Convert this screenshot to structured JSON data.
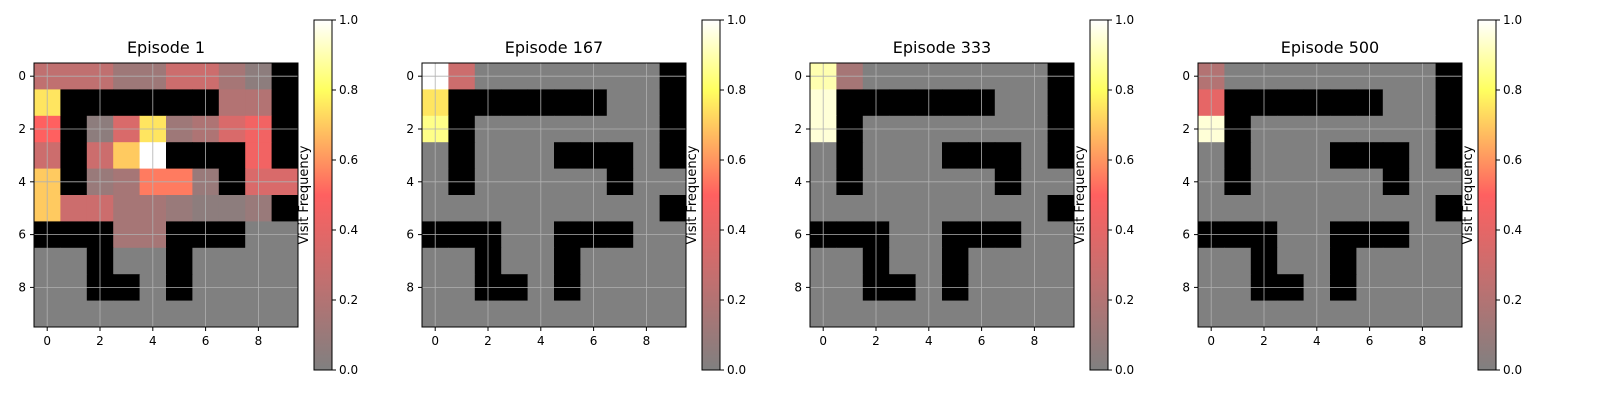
{
  "figure": {
    "colormap": [
      "#808080",
      "#ff6060",
      "#ffff60",
      "#ffffff"
    ],
    "wall_color": "#000000",
    "grid": true
  },
  "chart_data": [
    {
      "type": "heatmap",
      "title": "Episode 1",
      "xticks": [
        "0",
        "2",
        "4",
        "6",
        "8"
      ],
      "yticks": [
        "0",
        "2",
        "4",
        "6",
        "8"
      ],
      "colorbar_label": "Visit Frequency",
      "colorbar_ticks": [
        "0.0",
        "0.2",
        "0.4",
        "0.6",
        "0.8",
        "1.0"
      ],
      "clim": [
        0,
        1
      ],
      "cells": [
        [
          0.25,
          0.25,
          0.25,
          0.12,
          0.12,
          0.3,
          0.3,
          0.15,
          0.05,
          -1
        ],
        [
          0.75,
          -1,
          -1,
          -1,
          -1,
          -1,
          -1,
          0.2,
          0.2,
          -1
        ],
        [
          0.5,
          -1,
          0.05,
          0.35,
          0.75,
          0.12,
          0.18,
          0.35,
          0.45,
          -1
        ],
        [
          0.3,
          -1,
          0.3,
          0.7,
          1.0,
          -1,
          -1,
          -1,
          0.45,
          -1
        ],
        [
          0.7,
          -1,
          0.1,
          0.15,
          0.55,
          0.55,
          0.1,
          -1,
          0.35,
          0.35
        ],
        [
          0.7,
          0.3,
          0.3,
          0.15,
          0.15,
          0.1,
          0.05,
          0.05,
          0.1,
          -1
        ],
        [
          -1,
          -1,
          -1,
          0.15,
          0.15,
          -1,
          -1,
          -1,
          0,
          0
        ],
        [
          0,
          0,
          -1,
          0,
          0,
          -1,
          0,
          0,
          0,
          0
        ],
        [
          0,
          0,
          -1,
          -1,
          0,
          -1,
          0,
          0,
          0,
          0
        ],
        [
          0,
          0,
          0,
          0,
          0,
          0,
          0,
          0,
          0,
          0
        ]
      ]
    },
    {
      "type": "heatmap",
      "title": "Episode 167",
      "xticks": [
        "0",
        "2",
        "4",
        "6",
        "8"
      ],
      "yticks": [
        "0",
        "2",
        "4",
        "6",
        "8"
      ],
      "colorbar_label": "Visit Frequency",
      "colorbar_ticks": [
        "0.0",
        "0.2",
        "0.4",
        "0.6",
        "0.8",
        "1.0"
      ],
      "clim": [
        0,
        1
      ],
      "cells": [
        [
          1.0,
          0.3,
          0,
          0,
          0,
          0,
          0,
          0,
          0,
          -1
        ],
        [
          0.75,
          -1,
          -1,
          -1,
          -1,
          -1,
          -1,
          0,
          0,
          -1
        ],
        [
          0.85,
          -1,
          0,
          0,
          0,
          0,
          0,
          0,
          0,
          -1
        ],
        [
          0,
          -1,
          0,
          0,
          0,
          -1,
          -1,
          -1,
          0,
          -1
        ],
        [
          0,
          -1,
          0,
          0,
          0,
          0,
          0,
          -1,
          0,
          0
        ],
        [
          0,
          0,
          0,
          0,
          0,
          0,
          0,
          0,
          0,
          -1
        ],
        [
          -1,
          -1,
          -1,
          0,
          0,
          -1,
          -1,
          -1,
          0,
          0
        ],
        [
          0,
          0,
          -1,
          0,
          0,
          -1,
          0,
          0,
          0,
          0
        ],
        [
          0,
          0,
          -1,
          -1,
          0,
          -1,
          0,
          0,
          0,
          0
        ],
        [
          0,
          0,
          0,
          0,
          0,
          0,
          0,
          0,
          0,
          0
        ]
      ]
    },
    {
      "type": "heatmap",
      "title": "Episode 333",
      "xticks": [
        "0",
        "2",
        "4",
        "6",
        "8"
      ],
      "yticks": [
        "0",
        "2",
        "4",
        "6",
        "8"
      ],
      "colorbar_label": "Visit Frequency",
      "colorbar_ticks": [
        "0.0",
        "0.2",
        "0.4",
        "0.6",
        "0.8",
        "1.0"
      ],
      "clim": [
        0,
        1
      ],
      "cells": [
        [
          0.9,
          0.15,
          0,
          0,
          0,
          0,
          0,
          0,
          0,
          -1
        ],
        [
          0.95,
          -1,
          -1,
          -1,
          -1,
          -1,
          -1,
          0,
          0,
          -1
        ],
        [
          0.95,
          -1,
          0,
          0,
          0,
          0,
          0,
          0,
          0,
          -1
        ],
        [
          0,
          -1,
          0,
          0,
          0,
          -1,
          -1,
          -1,
          0,
          -1
        ],
        [
          0,
          -1,
          0,
          0,
          0,
          0,
          0,
          -1,
          0,
          0
        ],
        [
          0,
          0,
          0,
          0,
          0,
          0,
          0,
          0,
          0,
          -1
        ],
        [
          -1,
          -1,
          -1,
          0,
          0,
          -1,
          -1,
          -1,
          0,
          0
        ],
        [
          0,
          0,
          -1,
          0,
          0,
          -1,
          0,
          0,
          0,
          0
        ],
        [
          0,
          0,
          -1,
          -1,
          0,
          -1,
          0,
          0,
          0,
          0
        ],
        [
          0,
          0,
          0,
          0,
          0,
          0,
          0,
          0,
          0,
          0
        ]
      ]
    },
    {
      "type": "heatmap",
      "title": "Episode 500",
      "xticks": [
        "0",
        "2",
        "4",
        "6",
        "8"
      ],
      "yticks": [
        "0",
        "2",
        "4",
        "6",
        "8"
      ],
      "colorbar_label": "Visit Frequency",
      "colorbar_ticks": [
        "0.0",
        "0.2",
        "0.4",
        "0.6",
        "0.8",
        "1.0"
      ],
      "clim": [
        0,
        1
      ],
      "cells": [
        [
          0.2,
          0,
          0,
          0,
          0,
          0,
          0,
          0,
          0,
          -1
        ],
        [
          0.4,
          -1,
          -1,
          -1,
          -1,
          -1,
          -1,
          0,
          0,
          -1
        ],
        [
          0.95,
          -1,
          0,
          0,
          0,
          0,
          0,
          0,
          0,
          -1
        ],
        [
          0,
          -1,
          0,
          0,
          0,
          -1,
          -1,
          -1,
          0,
          -1
        ],
        [
          0,
          -1,
          0,
          0,
          0,
          0,
          0,
          -1,
          0,
          0
        ],
        [
          0,
          0,
          0,
          0,
          0,
          0,
          0,
          0,
          0,
          -1
        ],
        [
          -1,
          -1,
          -1,
          0,
          0,
          -1,
          -1,
          -1,
          0,
          0
        ],
        [
          0,
          0,
          -1,
          0,
          0,
          -1,
          0,
          0,
          0,
          0
        ],
        [
          0,
          0,
          -1,
          -1,
          0,
          -1,
          0,
          0,
          0,
          0
        ],
        [
          0,
          0,
          0,
          0,
          0,
          0,
          0,
          0,
          0,
          0
        ]
      ]
    }
  ]
}
